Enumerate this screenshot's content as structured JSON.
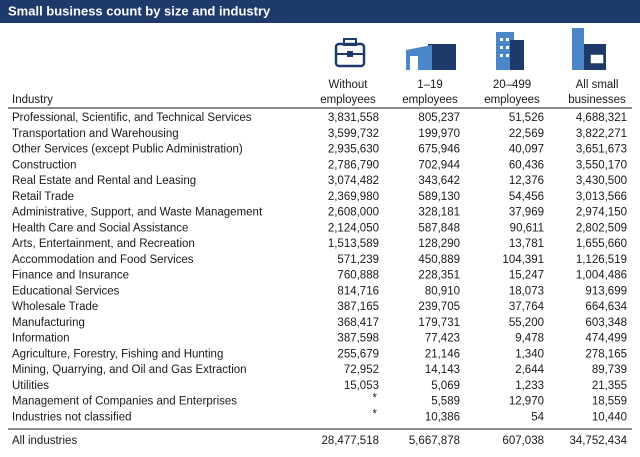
{
  "header": {
    "title": "Small business count by size and industry"
  },
  "table": {
    "columns": [
      [
        "Industry"
      ],
      [
        "Without",
        "employees"
      ],
      [
        "1–19",
        "employees"
      ],
      [
        "20–499",
        "employees"
      ],
      [
        "All small",
        "businesses"
      ]
    ],
    "rows": [
      [
        "Professional, Scientific, and Technical Services",
        "3,831,558",
        "805,237",
        "51,526",
        "4,688,321"
      ],
      [
        "Transportation and Warehousing",
        "3,599,732",
        "199,970",
        "22,569",
        "3,822,271"
      ],
      [
        "Other Services (except Public Administration)",
        "2,935,630",
        "675,946",
        "40,097",
        "3,651,673"
      ],
      [
        "Construction",
        "2,786,790",
        "702,944",
        "60,436",
        "3,550,170"
      ],
      [
        "Real Estate and Rental and Leasing",
        "3,074,482",
        "343,642",
        "12,376",
        "3,430,500"
      ],
      [
        "Retail Trade",
        "2,369,980",
        "589,130",
        "54,456",
        "3,013,566"
      ],
      [
        "Administrative, Support, and Waste Management",
        "2,608,000",
        "328,181",
        "37,969",
        "2,974,150"
      ],
      [
        "Health Care and Social Assistance",
        "2,124,050",
        "587,848",
        "90,611",
        "2,802,509"
      ],
      [
        "Arts, Entertainment, and Recreation",
        "1,513,589",
        "128,290",
        "13,781",
        "1,655,660"
      ],
      [
        "Accommodation and Food Services",
        "571,239",
        "450,889",
        "104,391",
        "1,126,519"
      ],
      [
        "Finance and Insurance",
        "760,888",
        "228,351",
        "15,247",
        "1,004,486"
      ],
      [
        "Educational Services",
        "814,716",
        "80,910",
        "18,073",
        "913,699"
      ],
      [
        "Wholesale Trade",
        "387,165",
        "239,705",
        "37,764",
        "664,634"
      ],
      [
        "Manufacturing",
        "368,417",
        "179,731",
        "55,200",
        "603,348"
      ],
      [
        "Information",
        "387,598",
        "77,423",
        "9,478",
        "474,499"
      ],
      [
        "Agriculture, Forestry, Fishing and Hunting",
        "255,679",
        "21,146",
        "1,340",
        "278,165"
      ],
      [
        "Mining, Quarrying, and Oil and Gas Extraction",
        "72,952",
        "14,143",
        "2,644",
        "89,739"
      ],
      [
        "Utilities",
        "15,053",
        "5,069",
        "1,233",
        "21,355"
      ],
      [
        "Management of Companies and Enterprises",
        "*",
        "5,589",
        "12,970",
        "18,559"
      ],
      [
        "Industries not classified",
        "*",
        "10,386",
        "54",
        "10,440"
      ]
    ],
    "total": [
      "All industries",
      "28,477,518",
      "5,667,878",
      "607,038",
      "34,752,434"
    ]
  }
}
